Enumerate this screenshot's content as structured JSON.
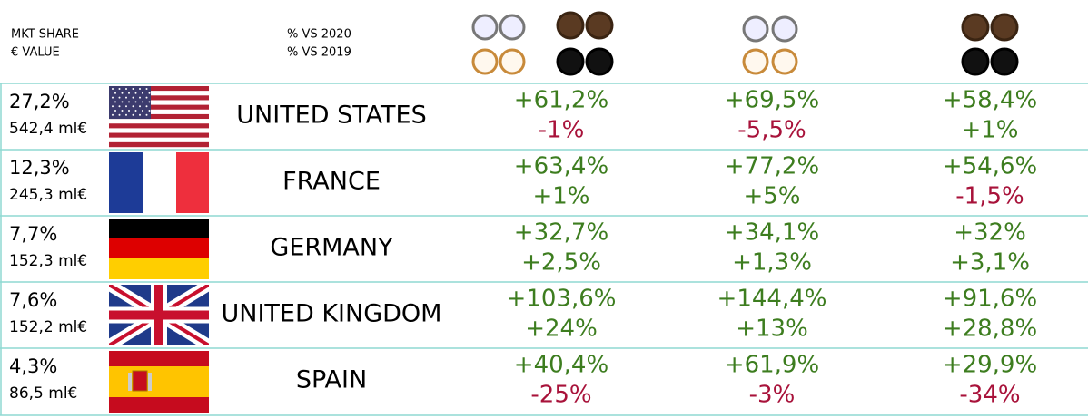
{
  "header": {
    "mkt_share": "MKT SHARE",
    "value": "€ VALUE",
    "vs2020": "% VS 2020",
    "vs2019": "% VS 2019"
  },
  "colors": {
    "positive": "#3d7d1f",
    "negative": "#a8123a"
  },
  "rows": [
    {
      "share": "27,2%",
      "value": "542,4 ml€",
      "country": "UNITED STATES",
      "cells": [
        [
          "+61,2%",
          "-1%"
        ],
        [
          "+69,5%",
          "-5,5%"
        ],
        [
          "+58,4%",
          "+1%"
        ]
      ]
    },
    {
      "share": "12,3%",
      "value": "245,3 ml€",
      "country": "FRANCE",
      "cells": [
        [
          "+63,4%",
          "+1%"
        ],
        [
          "+77,2%",
          "+5%"
        ],
        [
          "+54,6%",
          "-1,5%"
        ]
      ]
    },
    {
      "share": "7,7%",
      "value": "152,3 ml€",
      "country": "GERMANY",
      "cells": [
        [
          "+32,7%",
          "+2,5%"
        ],
        [
          "+34,1%",
          "+1,3%"
        ],
        [
          "+32%",
          "+3,1%"
        ]
      ]
    },
    {
      "share": "7,6%",
      "value": "152,2 ml€",
      "country": "UNITED KINGDOM",
      "cells": [
        [
          "+103,6%",
          "+24%"
        ],
        [
          "+144,4%",
          "+13%"
        ],
        [
          "+91,6%",
          "+28,8%"
        ]
      ]
    },
    {
      "share": "4,3%",
      "value": "86,5 ml€",
      "country": "SPAIN",
      "cells": [
        [
          "+40,4%",
          "-25%"
        ],
        [
          "+61,9%",
          "-3%"
        ],
        [
          "+29,9%",
          "-34%"
        ]
      ]
    }
  ]
}
